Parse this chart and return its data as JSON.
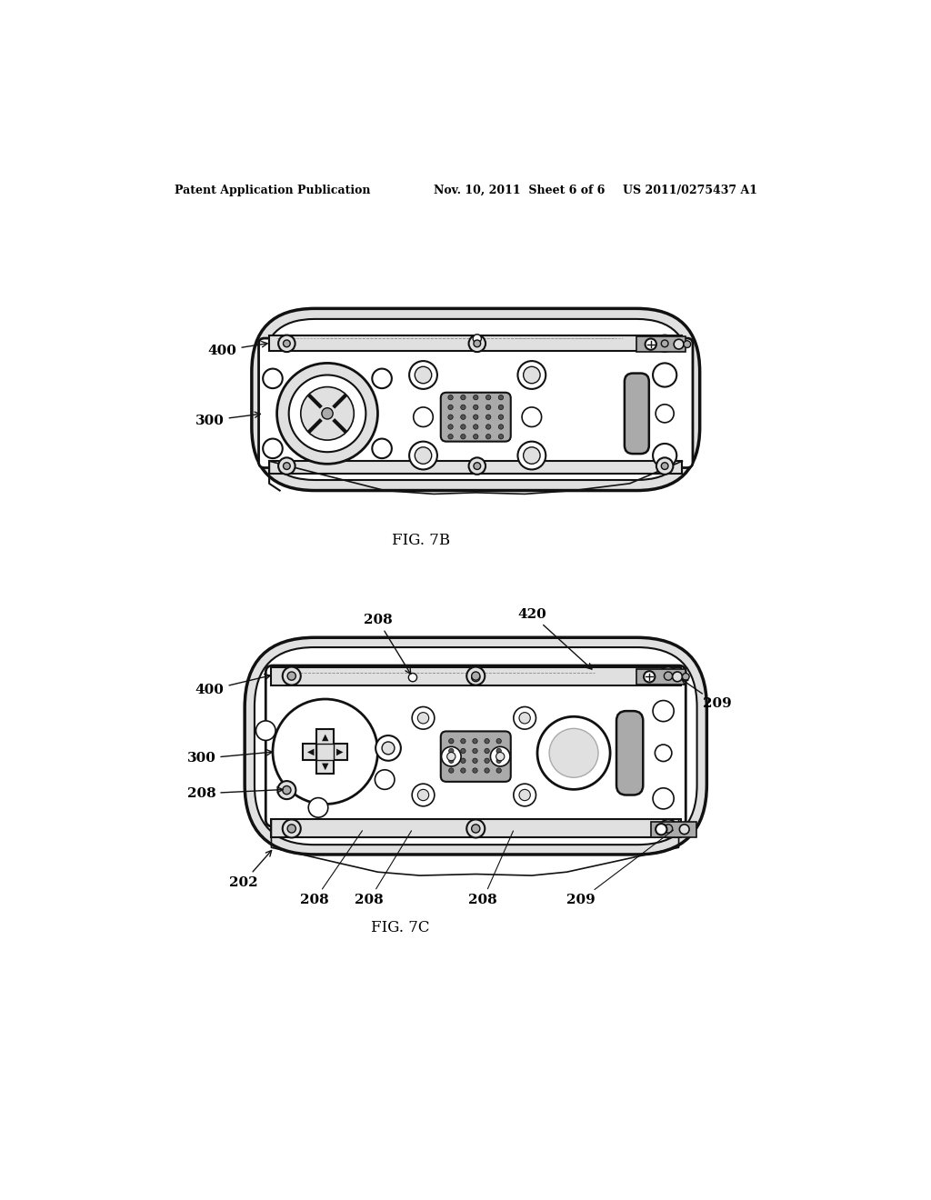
{
  "bg_color": "#ffffff",
  "header_left": "Patent Application Publication",
  "header_mid": "Nov. 10, 2011  Sheet 6 of 6",
  "header_right": "US 2011/0275437 A1",
  "fig7b_label": "FIG. 7B",
  "fig7c_label": "FIG. 7C",
  "line_color": "#111111",
  "fill_white": "#ffffff",
  "fill_light": "#e0e0e0",
  "fill_mid": "#aaaaaa",
  "fill_dark": "#555555"
}
